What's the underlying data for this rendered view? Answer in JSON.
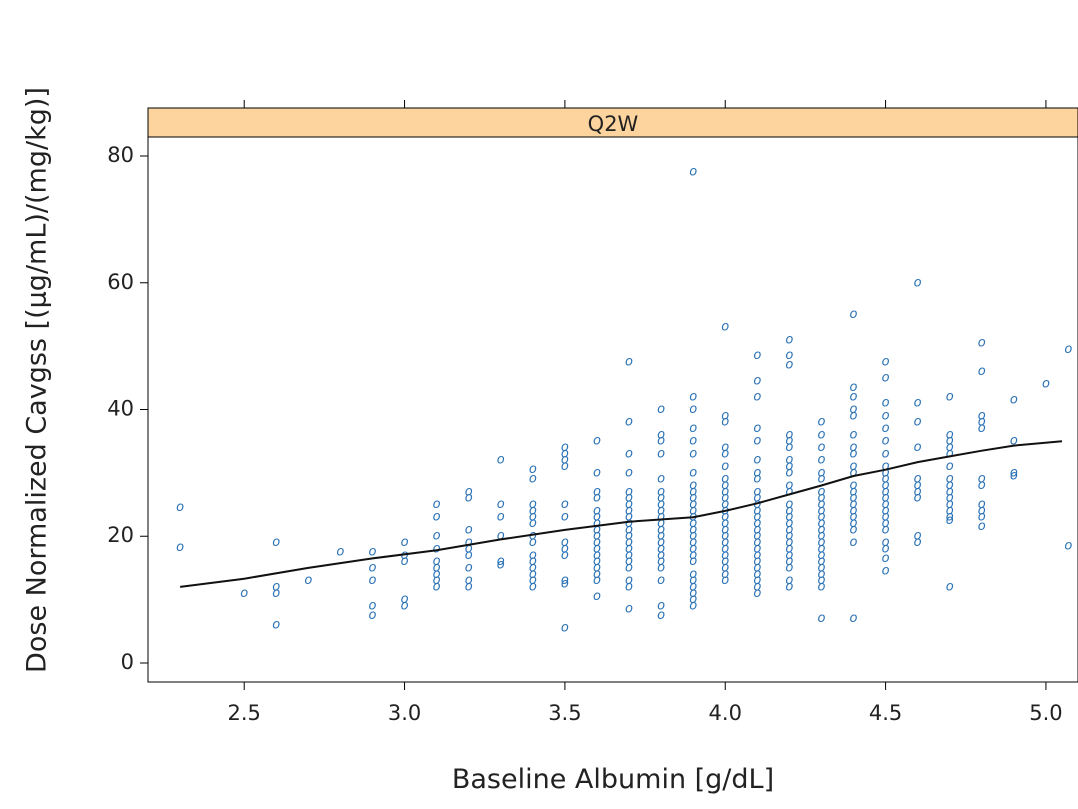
{
  "chart_data": {
    "type": "scatter",
    "panel": "Q2W",
    "xlabel": "Baseline Albumin [g/dL]",
    "ylabel": "Dose Normalized Cavgss [(µg/mL)/(mg/kg)]",
    "xlim": [
      2.2,
      5.1
    ],
    "ylim": [
      -3,
      83
    ],
    "xticks": [
      2.5,
      3.0,
      3.5,
      4.0,
      4.5,
      5.0
    ],
    "yticks": [
      0,
      20,
      40,
      60,
      80
    ],
    "marker": "o",
    "point_color": "#2c73b6",
    "strip_color": "#fdd49e",
    "trend_color": "#111111",
    "points": [
      [
        2.3,
        24.5
      ],
      [
        2.3,
        18.2
      ],
      [
        2.5,
        11
      ],
      [
        2.6,
        19
      ],
      [
        2.6,
        12
      ],
      [
        2.6,
        11
      ],
      [
        2.6,
        6
      ],
      [
        2.7,
        13
      ],
      [
        2.8,
        17.5
      ],
      [
        2.9,
        17.5
      ],
      [
        2.9,
        15
      ],
      [
        2.9,
        13
      ],
      [
        2.9,
        9
      ],
      [
        2.9,
        7.5
      ],
      [
        3.0,
        19
      ],
      [
        3.0,
        17
      ],
      [
        3.0,
        16
      ],
      [
        3.0,
        10
      ],
      [
        3.0,
        9
      ],
      [
        3.1,
        25
      ],
      [
        3.1,
        23
      ],
      [
        3.1,
        20
      ],
      [
        3.1,
        18
      ],
      [
        3.1,
        16
      ],
      [
        3.1,
        15
      ],
      [
        3.1,
        14
      ],
      [
        3.1,
        13
      ],
      [
        3.1,
        12
      ],
      [
        3.2,
        27
      ],
      [
        3.2,
        26
      ],
      [
        3.2,
        21
      ],
      [
        3.2,
        19
      ],
      [
        3.2,
        18
      ],
      [
        3.2,
        17
      ],
      [
        3.2,
        15
      ],
      [
        3.2,
        13
      ],
      [
        3.2,
        12
      ],
      [
        3.3,
        32
      ],
      [
        3.3,
        25
      ],
      [
        3.3,
        23
      ],
      [
        3.3,
        20
      ],
      [
        3.3,
        16
      ],
      [
        3.3,
        15.5
      ],
      [
        3.4,
        30.5
      ],
      [
        3.4,
        29
      ],
      [
        3.4,
        25
      ],
      [
        3.4,
        24
      ],
      [
        3.4,
        23
      ],
      [
        3.4,
        22
      ],
      [
        3.4,
        20
      ],
      [
        3.4,
        19
      ],
      [
        3.4,
        17
      ],
      [
        3.4,
        16
      ],
      [
        3.4,
        15
      ],
      [
        3.4,
        14
      ],
      [
        3.4,
        13
      ],
      [
        3.4,
        12
      ],
      [
        3.5,
        34
      ],
      [
        3.5,
        33
      ],
      [
        3.5,
        32
      ],
      [
        3.5,
        31
      ],
      [
        3.5,
        25
      ],
      [
        3.5,
        23
      ],
      [
        3.5,
        19
      ],
      [
        3.5,
        18
      ],
      [
        3.5,
        17
      ],
      [
        3.5,
        13
      ],
      [
        3.5,
        12.5
      ],
      [
        3.5,
        5.5
      ],
      [
        3.6,
        35
      ],
      [
        3.6,
        30
      ],
      [
        3.6,
        27
      ],
      [
        3.6,
        26
      ],
      [
        3.6,
        24
      ],
      [
        3.6,
        23
      ],
      [
        3.6,
        22
      ],
      [
        3.6,
        21
      ],
      [
        3.6,
        20
      ],
      [
        3.6,
        19
      ],
      [
        3.6,
        18
      ],
      [
        3.6,
        17
      ],
      [
        3.6,
        16
      ],
      [
        3.6,
        15
      ],
      [
        3.6,
        14
      ],
      [
        3.6,
        13
      ],
      [
        3.6,
        10.5
      ],
      [
        3.7,
        47.5
      ],
      [
        3.7,
        38
      ],
      [
        3.7,
        33
      ],
      [
        3.7,
        30
      ],
      [
        3.7,
        27
      ],
      [
        3.7,
        26
      ],
      [
        3.7,
        25
      ],
      [
        3.7,
        24
      ],
      [
        3.7,
        23
      ],
      [
        3.7,
        22
      ],
      [
        3.7,
        21
      ],
      [
        3.7,
        20
      ],
      [
        3.7,
        19
      ],
      [
        3.7,
        18
      ],
      [
        3.7,
        17
      ],
      [
        3.7,
        16
      ],
      [
        3.7,
        15
      ],
      [
        3.7,
        13
      ],
      [
        3.7,
        12
      ],
      [
        3.7,
        8.5
      ],
      [
        3.8,
        40
      ],
      [
        3.8,
        36
      ],
      [
        3.8,
        35
      ],
      [
        3.8,
        33
      ],
      [
        3.8,
        29
      ],
      [
        3.8,
        27
      ],
      [
        3.8,
        26
      ],
      [
        3.8,
        25
      ],
      [
        3.8,
        24
      ],
      [
        3.8,
        23
      ],
      [
        3.8,
        22
      ],
      [
        3.8,
        21
      ],
      [
        3.8,
        20
      ],
      [
        3.8,
        19
      ],
      [
        3.8,
        18
      ],
      [
        3.8,
        17
      ],
      [
        3.8,
        16
      ],
      [
        3.8,
        15
      ],
      [
        3.8,
        13
      ],
      [
        3.8,
        9
      ],
      [
        3.8,
        7.5
      ],
      [
        3.9,
        77.5
      ],
      [
        3.9,
        42
      ],
      [
        3.9,
        40
      ],
      [
        3.9,
        37
      ],
      [
        3.9,
        35
      ],
      [
        3.9,
        33
      ],
      [
        3.9,
        30
      ],
      [
        3.9,
        28
      ],
      [
        3.9,
        27
      ],
      [
        3.9,
        26
      ],
      [
        3.9,
        25
      ],
      [
        3.9,
        24
      ],
      [
        3.9,
        23
      ],
      [
        3.9,
        22
      ],
      [
        3.9,
        21
      ],
      [
        3.9,
        20
      ],
      [
        3.9,
        19
      ],
      [
        3.9,
        18
      ],
      [
        3.9,
        17
      ],
      [
        3.9,
        16
      ],
      [
        3.9,
        14
      ],
      [
        3.9,
        13
      ],
      [
        3.9,
        12
      ],
      [
        3.9,
        11
      ],
      [
        3.9,
        10
      ],
      [
        3.9,
        9
      ],
      [
        4.0,
        53
      ],
      [
        4.0,
        39
      ],
      [
        4.0,
        38
      ],
      [
        4.0,
        34
      ],
      [
        4.0,
        33
      ],
      [
        4.0,
        31
      ],
      [
        4.0,
        29
      ],
      [
        4.0,
        28
      ],
      [
        4.0,
        27
      ],
      [
        4.0,
        26
      ],
      [
        4.0,
        25
      ],
      [
        4.0,
        24
      ],
      [
        4.0,
        23
      ],
      [
        4.0,
        22
      ],
      [
        4.0,
        21
      ],
      [
        4.0,
        20
      ],
      [
        4.0,
        19
      ],
      [
        4.0,
        18
      ],
      [
        4.0,
        17
      ],
      [
        4.0,
        16
      ],
      [
        4.0,
        15
      ],
      [
        4.0,
        14
      ],
      [
        4.0,
        13
      ],
      [
        4.1,
        48.5
      ],
      [
        4.1,
        44.5
      ],
      [
        4.1,
        42
      ],
      [
        4.1,
        37
      ],
      [
        4.1,
        35
      ],
      [
        4.1,
        32
      ],
      [
        4.1,
        30
      ],
      [
        4.1,
        29
      ],
      [
        4.1,
        27
      ],
      [
        4.1,
        26
      ],
      [
        4.1,
        25
      ],
      [
        4.1,
        24
      ],
      [
        4.1,
        23
      ],
      [
        4.1,
        22
      ],
      [
        4.1,
        21
      ],
      [
        4.1,
        20
      ],
      [
        4.1,
        19
      ],
      [
        4.1,
        18
      ],
      [
        4.1,
        17
      ],
      [
        4.1,
        16
      ],
      [
        4.1,
        15
      ],
      [
        4.1,
        14
      ],
      [
        4.1,
        13
      ],
      [
        4.1,
        12
      ],
      [
        4.1,
        11
      ],
      [
        4.2,
        51
      ],
      [
        4.2,
        48.5
      ],
      [
        4.2,
        47
      ],
      [
        4.2,
        36
      ],
      [
        4.2,
        35
      ],
      [
        4.2,
        34
      ],
      [
        4.2,
        32
      ],
      [
        4.2,
        31
      ],
      [
        4.2,
        30
      ],
      [
        4.2,
        28
      ],
      [
        4.2,
        27
      ],
      [
        4.2,
        25
      ],
      [
        4.2,
        24
      ],
      [
        4.2,
        23
      ],
      [
        4.2,
        22
      ],
      [
        4.2,
        21
      ],
      [
        4.2,
        20
      ],
      [
        4.2,
        19
      ],
      [
        4.2,
        18
      ],
      [
        4.2,
        17
      ],
      [
        4.2,
        16
      ],
      [
        4.2,
        15
      ],
      [
        4.2,
        13
      ],
      [
        4.2,
        12
      ],
      [
        4.3,
        38
      ],
      [
        4.3,
        36
      ],
      [
        4.3,
        34
      ],
      [
        4.3,
        32
      ],
      [
        4.3,
        30
      ],
      [
        4.3,
        29
      ],
      [
        4.3,
        27
      ],
      [
        4.3,
        26
      ],
      [
        4.3,
        25
      ],
      [
        4.3,
        24
      ],
      [
        4.3,
        23
      ],
      [
        4.3,
        22
      ],
      [
        4.3,
        21
      ],
      [
        4.3,
        20
      ],
      [
        4.3,
        19
      ],
      [
        4.3,
        18
      ],
      [
        4.3,
        17
      ],
      [
        4.3,
        16
      ],
      [
        4.3,
        15
      ],
      [
        4.3,
        14
      ],
      [
        4.3,
        13
      ],
      [
        4.3,
        12
      ],
      [
        4.3,
        7
      ],
      [
        4.4,
        55
      ],
      [
        4.4,
        43.5
      ],
      [
        4.4,
        42
      ],
      [
        4.4,
        40
      ],
      [
        4.4,
        39
      ],
      [
        4.4,
        36
      ],
      [
        4.4,
        34
      ],
      [
        4.4,
        33
      ],
      [
        4.4,
        31
      ],
      [
        4.4,
        30
      ],
      [
        4.4,
        28
      ],
      [
        4.4,
        27
      ],
      [
        4.4,
        26
      ],
      [
        4.4,
        25
      ],
      [
        4.4,
        24
      ],
      [
        4.4,
        23
      ],
      [
        4.4,
        22
      ],
      [
        4.4,
        21
      ],
      [
        4.4,
        19
      ],
      [
        4.4,
        7
      ],
      [
        4.5,
        47.5
      ],
      [
        4.5,
        45
      ],
      [
        4.5,
        41
      ],
      [
        4.5,
        39
      ],
      [
        4.5,
        37
      ],
      [
        4.5,
        35
      ],
      [
        4.5,
        33
      ],
      [
        4.5,
        31
      ],
      [
        4.5,
        30
      ],
      [
        4.5,
        29
      ],
      [
        4.5,
        28
      ],
      [
        4.5,
        27
      ],
      [
        4.5,
        26
      ],
      [
        4.5,
        25
      ],
      [
        4.5,
        24
      ],
      [
        4.5,
        23
      ],
      [
        4.5,
        22
      ],
      [
        4.5,
        21
      ],
      [
        4.5,
        19
      ],
      [
        4.5,
        18
      ],
      [
        4.5,
        16.5
      ],
      [
        4.5,
        14.5
      ],
      [
        4.6,
        60
      ],
      [
        4.6,
        41
      ],
      [
        4.6,
        38
      ],
      [
        4.6,
        34
      ],
      [
        4.6,
        29
      ],
      [
        4.6,
        28
      ],
      [
        4.6,
        27
      ],
      [
        4.6,
        26
      ],
      [
        4.6,
        20
      ],
      [
        4.6,
        19
      ],
      [
        4.7,
        42
      ],
      [
        4.7,
        36
      ],
      [
        4.7,
        35
      ],
      [
        4.7,
        34
      ],
      [
        4.7,
        33
      ],
      [
        4.7,
        31
      ],
      [
        4.7,
        29
      ],
      [
        4.7,
        28
      ],
      [
        4.7,
        27
      ],
      [
        4.7,
        26
      ],
      [
        4.7,
        25
      ],
      [
        4.7,
        24
      ],
      [
        4.7,
        23
      ],
      [
        4.7,
        22.5
      ],
      [
        4.7,
        12
      ],
      [
        4.8,
        50.5
      ],
      [
        4.8,
        46
      ],
      [
        4.8,
        39
      ],
      [
        4.8,
        38
      ],
      [
        4.8,
        37
      ],
      [
        4.8,
        29
      ],
      [
        4.8,
        28
      ],
      [
        4.8,
        25
      ],
      [
        4.8,
        24
      ],
      [
        4.8,
        23
      ],
      [
        4.8,
        21.5
      ],
      [
        4.9,
        41.5
      ],
      [
        4.9,
        35
      ],
      [
        4.9,
        30
      ],
      [
        4.9,
        29.5
      ],
      [
        5.0,
        44
      ],
      [
        5.07,
        49.5
      ],
      [
        5.07,
        18.5
      ]
    ],
    "trend_line": [
      [
        2.3,
        12
      ],
      [
        2.5,
        13.3
      ],
      [
        2.7,
        15
      ],
      [
        2.9,
        16.5
      ],
      [
        3.1,
        17.8
      ],
      [
        3.3,
        19.5
      ],
      [
        3.5,
        21
      ],
      [
        3.7,
        22.3
      ],
      [
        3.9,
        23
      ],
      [
        4.0,
        24
      ],
      [
        4.1,
        25.2
      ],
      [
        4.2,
        26.6
      ],
      [
        4.3,
        28
      ],
      [
        4.4,
        29.5
      ],
      [
        4.5,
        30.5
      ],
      [
        4.6,
        31.7
      ],
      [
        4.7,
        32.6
      ],
      [
        4.8,
        33.5
      ],
      [
        4.9,
        34.3
      ],
      [
        5.05,
        35
      ]
    ]
  }
}
